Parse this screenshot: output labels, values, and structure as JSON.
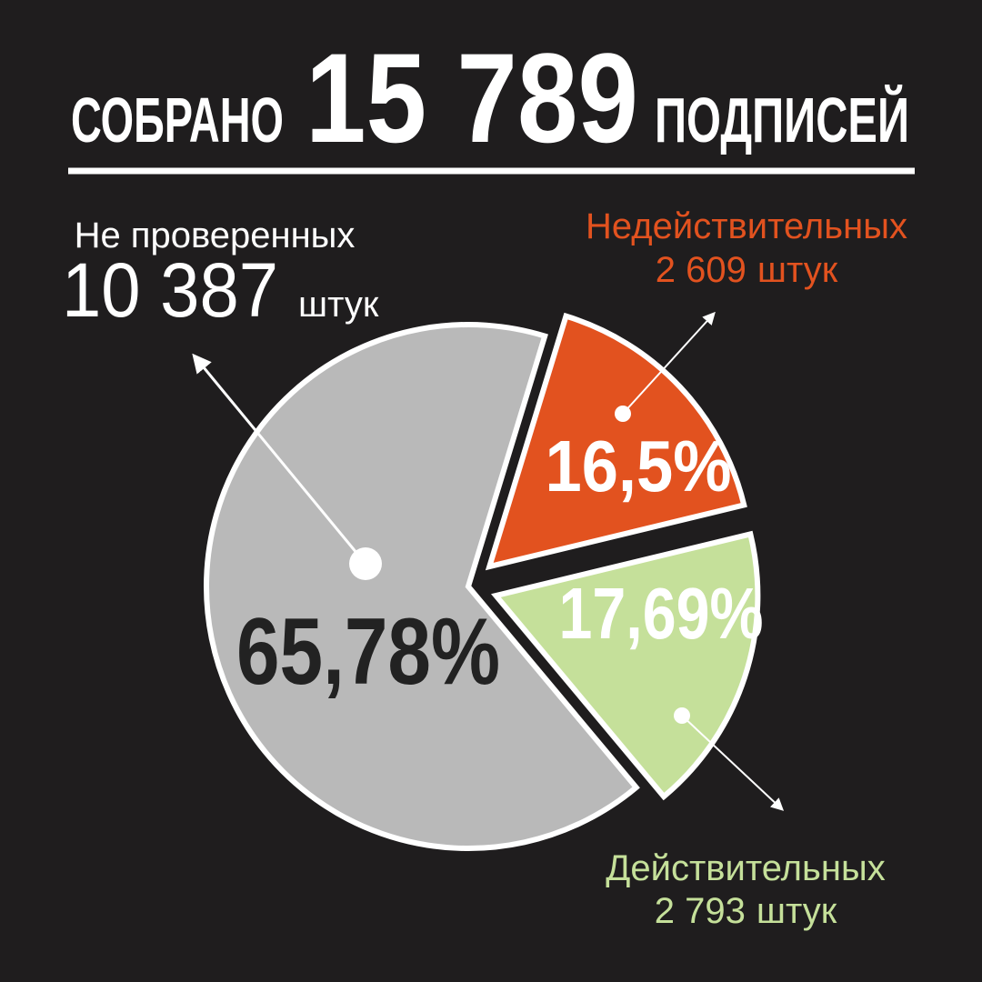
{
  "header": {
    "word_before": "СОБРАНО",
    "total": "15 789",
    "word_after": "ПОДПИСЕЙ"
  },
  "chart_data": {
    "type": "pie",
    "categories": [
      "Недействительных",
      "Действительных",
      "Не проверенных"
    ],
    "values": [
      16.5,
      17.69,
      65.78
    ],
    "value_labels": [
      "16,5%",
      "17,69%",
      "65,78%"
    ],
    "colors": [
      "#e2521f",
      "#c5e09a",
      "#b9b9b9"
    ],
    "counts": [
      "2 609",
      "2 793",
      "10 387"
    ],
    "unit": "штук"
  }
}
